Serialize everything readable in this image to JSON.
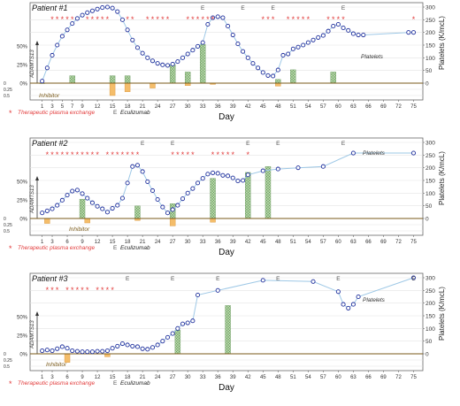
{
  "chart_data": [
    {
      "type": "line",
      "title": "Patient #1",
      "xlabel": "Day",
      "ylabel_right": "Platelets (K/mcL)",
      "ylabel_left": "ADAMTS13",
      "inhibitor_label": "Inhibitor",
      "platelets_label": "Platelets",
      "x_ticks": [
        1,
        3,
        5,
        7,
        9,
        12,
        15,
        18,
        21,
        24,
        27,
        30,
        33,
        36,
        39,
        42,
        45,
        48,
        51,
        54,
        57,
        60,
        63,
        66,
        69,
        72,
        75
      ],
      "y_ticks_right": [
        0,
        50,
        100,
        150,
        200,
        250,
        300
      ],
      "y_ticks_left": [
        "50%",
        "25%",
        "0%"
      ],
      "inhibitor_ticks": [
        "0",
        "0.25",
        "0.5"
      ],
      "ylim_platelets": [
        0,
        300
      ],
      "tpe_days": [
        3,
        4,
        5,
        6,
        7,
        10,
        11,
        12,
        13,
        14,
        18,
        19,
        22,
        23,
        24,
        25,
        26,
        30,
        31,
        32,
        33,
        34,
        35,
        45,
        46,
        47,
        50,
        51,
        52,
        53,
        54,
        58,
        59,
        60,
        61,
        75
      ],
      "eculizumab_days": [
        33,
        41,
        47,
        61
      ],
      "platelets": [
        {
          "day": 1,
          "value": 8
        },
        {
          "day": 2,
          "value": 60
        },
        {
          "day": 3,
          "value": 110
        },
        {
          "day": 4,
          "value": 150
        },
        {
          "day": 5,
          "value": 185
        },
        {
          "day": 6,
          "value": 210
        },
        {
          "day": 7,
          "value": 235
        },
        {
          "day": 8,
          "value": 255
        },
        {
          "day": 9,
          "value": 268
        },
        {
          "day": 10,
          "value": 278
        },
        {
          "day": 11,
          "value": 285
        },
        {
          "day": 12,
          "value": 292
        },
        {
          "day": 13,
          "value": 298
        },
        {
          "day": 14,
          "value": 300
        },
        {
          "day": 15,
          "value": 296
        },
        {
          "day": 16,
          "value": 282
        },
        {
          "day": 17,
          "value": 250
        },
        {
          "day": 18,
          "value": 210
        },
        {
          "day": 19,
          "value": 170
        },
        {
          "day": 20,
          "value": 140
        },
        {
          "day": 21,
          "value": 118
        },
        {
          "day": 22,
          "value": 100
        },
        {
          "day": 23,
          "value": 88
        },
        {
          "day": 24,
          "value": 78
        },
        {
          "day": 25,
          "value": 72
        },
        {
          "day": 26,
          "value": 70
        },
        {
          "day": 27,
          "value": 75
        },
        {
          "day": 28,
          "value": 85
        },
        {
          "day": 29,
          "value": 100
        },
        {
          "day": 30,
          "value": 115
        },
        {
          "day": 31,
          "value": 130
        },
        {
          "day": 32,
          "value": 145
        },
        {
          "day": 33,
          "value": 160
        },
        {
          "day": 34,
          "value": 232
        },
        {
          "day": 35,
          "value": 258
        },
        {
          "day": 36,
          "value": 262
        },
        {
          "day": 37,
          "value": 258
        },
        {
          "day": 38,
          "value": 225
        },
        {
          "day": 39,
          "value": 190
        },
        {
          "day": 40,
          "value": 155
        },
        {
          "day": 41,
          "value": 125
        },
        {
          "day": 42,
          "value": 100
        },
        {
          "day": 43,
          "value": 78
        },
        {
          "day": 44,
          "value": 60
        },
        {
          "day": 45,
          "value": 42
        },
        {
          "day": 46,
          "value": 30
        },
        {
          "day": 47,
          "value": 28
        },
        {
          "day": 48,
          "value": 52
        },
        {
          "day": 49,
          "value": 110
        },
        {
          "day": 50,
          "value": 115
        },
        {
          "day": 51,
          "value": 135
        },
        {
          "day": 52,
          "value": 142
        },
        {
          "day": 53,
          "value": 150
        },
        {
          "day": 54,
          "value": 160
        },
        {
          "day": 55,
          "value": 170
        },
        {
          "day": 56,
          "value": 180
        },
        {
          "day": 57,
          "value": 188
        },
        {
          "day": 58,
          "value": 205
        },
        {
          "day": 59,
          "value": 225
        },
        {
          "day": 60,
          "value": 232
        },
        {
          "day": 61,
          "value": 218
        },
        {
          "day": 62,
          "value": 208
        },
        {
          "day": 63,
          "value": 195
        },
        {
          "day": 64,
          "value": 190
        },
        {
          "day": 65,
          "value": 190
        },
        {
          "day": 74,
          "value": 200
        },
        {
          "day": 75,
          "value": 200
        }
      ],
      "adamts13": [
        {
          "day": 1,
          "value": 0
        },
        {
          "day": 7,
          "value": 10
        },
        {
          "day": 15,
          "value": 10
        },
        {
          "day": 18,
          "value": 10
        },
        {
          "day": 27,
          "value": 25
        },
        {
          "day": 30,
          "value": 15
        },
        {
          "day": 33,
          "value": 52
        },
        {
          "day": 48,
          "value": 5
        },
        {
          "day": 51,
          "value": 18
        },
        {
          "day": 59,
          "value": 15
        }
      ],
      "inhibitor": [
        {
          "day": 15,
          "value": 0.5
        },
        {
          "day": 18,
          "value": 0.35
        },
        {
          "day": 23,
          "value": 0.2
        },
        {
          "day": 30,
          "value": 0.1
        },
        {
          "day": 35,
          "value": 0.05
        },
        {
          "day": 48,
          "value": 0.12
        }
      ]
    },
    {
      "type": "line",
      "title": "Patient #2",
      "xlabel": "Day",
      "ylabel_right": "Platelets (K/mcL)",
      "ylabel_left": "ADAMTS13",
      "inhibitor_label": "Inhibitor",
      "platelets_label": "Platelets",
      "x_ticks": [
        1,
        3,
        6,
        9,
        12,
        15,
        18,
        21,
        24,
        27,
        30,
        33,
        36,
        39,
        42,
        45,
        48,
        51,
        54,
        57,
        60,
        63,
        66,
        69,
        72,
        75
      ],
      "y_ticks_right": [
        0,
        50,
        100,
        150,
        200,
        250,
        300
      ],
      "y_ticks_left": [
        "50%",
        "25%",
        "0%"
      ],
      "inhibitor_ticks": [
        "0",
        "0.25",
        "0.5"
      ],
      "ylim_platelets": [
        0,
        300
      ],
      "tpe_days": [
        2,
        3,
        4,
        5,
        6,
        7,
        8,
        9,
        10,
        11,
        12,
        14,
        15,
        16,
        17,
        18,
        19,
        20,
        27,
        28,
        29,
        30,
        31,
        35,
        36,
        37,
        38,
        39,
        42
      ],
      "eculizumab_days": [
        21,
        27,
        42,
        48,
        61
      ],
      "platelets": [
        {
          "day": 1,
          "value": 22
        },
        {
          "day": 2,
          "value": 30
        },
        {
          "day": 3,
          "value": 38
        },
        {
          "day": 4,
          "value": 52
        },
        {
          "day": 5,
          "value": 72
        },
        {
          "day": 6,
          "value": 92
        },
        {
          "day": 7,
          "value": 108
        },
        {
          "day": 8,
          "value": 112
        },
        {
          "day": 9,
          "value": 98
        },
        {
          "day": 10,
          "value": 80
        },
        {
          "day": 11,
          "value": 62
        },
        {
          "day": 12,
          "value": 48
        },
        {
          "day": 13,
          "value": 38
        },
        {
          "day": 14,
          "value": 25
        },
        {
          "day": 15,
          "value": 40
        },
        {
          "day": 16,
          "value": 52
        },
        {
          "day": 17,
          "value": 80
        },
        {
          "day": 18,
          "value": 140
        },
        {
          "day": 19,
          "value": 205
        },
        {
          "day": 20,
          "value": 210
        },
        {
          "day": 21,
          "value": 185
        },
        {
          "day": 22,
          "value": 145
        },
        {
          "day": 23,
          "value": 110
        },
        {
          "day": 24,
          "value": 75
        },
        {
          "day": 25,
          "value": 45
        },
        {
          "day": 26,
          "value": 22
        },
        {
          "day": 27,
          "value": 35
        },
        {
          "day": 28,
          "value": 52
        },
        {
          "day": 29,
          "value": 78
        },
        {
          "day": 30,
          "value": 100
        },
        {
          "day": 31,
          "value": 118
        },
        {
          "day": 32,
          "value": 140
        },
        {
          "day": 33,
          "value": 158
        },
        {
          "day": 34,
          "value": 175
        },
        {
          "day": 35,
          "value": 180
        },
        {
          "day": 36,
          "value": 178
        },
        {
          "day": 37,
          "value": 170
        },
        {
          "day": 38,
          "value": 168
        },
        {
          "day": 39,
          "value": 160
        },
        {
          "day": 40,
          "value": 148
        },
        {
          "day": 41,
          "value": 150
        },
        {
          "day": 42,
          "value": 172
        },
        {
          "day": 45,
          "value": 188
        },
        {
          "day": 48,
          "value": 195
        },
        {
          "day": 52,
          "value": 200
        },
        {
          "day": 57,
          "value": 205
        },
        {
          "day": 63,
          "value": 258
        },
        {
          "day": 75,
          "value": 258
        }
      ],
      "adamts13": [
        {
          "day": 9,
          "value": 26
        },
        {
          "day": 20,
          "value": 17
        },
        {
          "day": 27,
          "value": 20
        },
        {
          "day": 35,
          "value": 54
        },
        {
          "day": 42,
          "value": 62
        },
        {
          "day": 46,
          "value": 70
        }
      ],
      "inhibitor": [
        {
          "day": 2,
          "value": 0.2
        },
        {
          "day": 10,
          "value": 0.18
        },
        {
          "day": 20,
          "value": 0.08
        },
        {
          "day": 27,
          "value": 0.3
        },
        {
          "day": 35,
          "value": 0.15
        }
      ]
    },
    {
      "type": "line",
      "title": "Patient #3",
      "xlabel": "Day",
      "ylabel_right": "Platelets (K/mcL)",
      "ylabel_left": "ADAMTS13",
      "inhibitor_label": "Inhibitor",
      "platelets_label": "Platelets",
      "x_ticks": [
        1,
        3,
        6,
        9,
        12,
        15,
        18,
        21,
        24,
        27,
        30,
        33,
        36,
        39,
        42,
        45,
        48,
        51,
        54,
        57,
        60,
        63,
        66,
        69,
        72,
        75
      ],
      "y_ticks_right": [
        0,
        50,
        100,
        150,
        200,
        250,
        300
      ],
      "y_ticks_left": [
        "50%",
        "25%",
        "0%"
      ],
      "inhibitor_ticks": [
        "0",
        "0.25",
        "0.5"
      ],
      "ylim_platelets": [
        0,
        300
      ],
      "tpe_days": [
        2,
        3,
        4,
        6,
        7,
        8,
        9,
        10,
        12,
        13,
        14,
        15
      ],
      "eculizumab_days": [
        18,
        27,
        36,
        48,
        60,
        75
      ],
      "platelets": [
        {
          "day": 1,
          "value": 12
        },
        {
          "day": 2,
          "value": 15
        },
        {
          "day": 3,
          "value": 12
        },
        {
          "day": 4,
          "value": 20
        },
        {
          "day": 5,
          "value": 28
        },
        {
          "day": 6,
          "value": 22
        },
        {
          "day": 7,
          "value": 12
        },
        {
          "day": 8,
          "value": 10
        },
        {
          "day": 9,
          "value": 8
        },
        {
          "day": 10,
          "value": 8
        },
        {
          "day": 11,
          "value": 8
        },
        {
          "day": 12,
          "value": 10
        },
        {
          "day": 13,
          "value": 10
        },
        {
          "day": 14,
          "value": 12
        },
        {
          "day": 15,
          "value": 22
        },
        {
          "day": 16,
          "value": 30
        },
        {
          "day": 17,
          "value": 40
        },
        {
          "day": 18,
          "value": 35
        },
        {
          "day": 19,
          "value": 30
        },
        {
          "day": 20,
          "value": 28
        },
        {
          "day": 21,
          "value": 20
        },
        {
          "day": 22,
          "value": 18
        },
        {
          "day": 23,
          "value": 25
        },
        {
          "day": 24,
          "value": 35
        },
        {
          "day": 25,
          "value": 50
        },
        {
          "day": 26,
          "value": 65
        },
        {
          "day": 27,
          "value": 80
        },
        {
          "day": 28,
          "value": 100
        },
        {
          "day": 29,
          "value": 118
        },
        {
          "day": 30,
          "value": 122
        },
        {
          "day": 31,
          "value": 130
        },
        {
          "day": 32,
          "value": 232
        },
        {
          "day": 36,
          "value": 250
        },
        {
          "day": 45,
          "value": 290
        },
        {
          "day": 55,
          "value": 285
        },
        {
          "day": 60,
          "value": 245
        },
        {
          "day": 61,
          "value": 195
        },
        {
          "day": 62,
          "value": 180
        },
        {
          "day": 63,
          "value": 195
        },
        {
          "day": 64,
          "value": 225
        },
        {
          "day": 75,
          "value": 300
        }
      ],
      "adamts13": [
        {
          "day": 28,
          "value": 32
        },
        {
          "day": 38,
          "value": 65
        }
      ],
      "inhibitor": [
        {
          "day": 6,
          "value": 0.35
        },
        {
          "day": 14,
          "value": 0.12
        }
      ]
    }
  ],
  "legend": {
    "tpe_symbol": "*",
    "tpe_label": "Therapeutic plasma exchange",
    "ecu_symbol": "E",
    "ecu_label": "Eculizumab"
  },
  "colors": {
    "platelet_marker": "#1f2f9c",
    "platelet_line": "#9ec8e6",
    "adamts13_bar": "#9cc48f",
    "inhibitor_bar": "#f4bd6a",
    "tpe_star": "#e23b3b",
    "baseline": "#7a5a1a",
    "eculizumab": "#555555"
  }
}
